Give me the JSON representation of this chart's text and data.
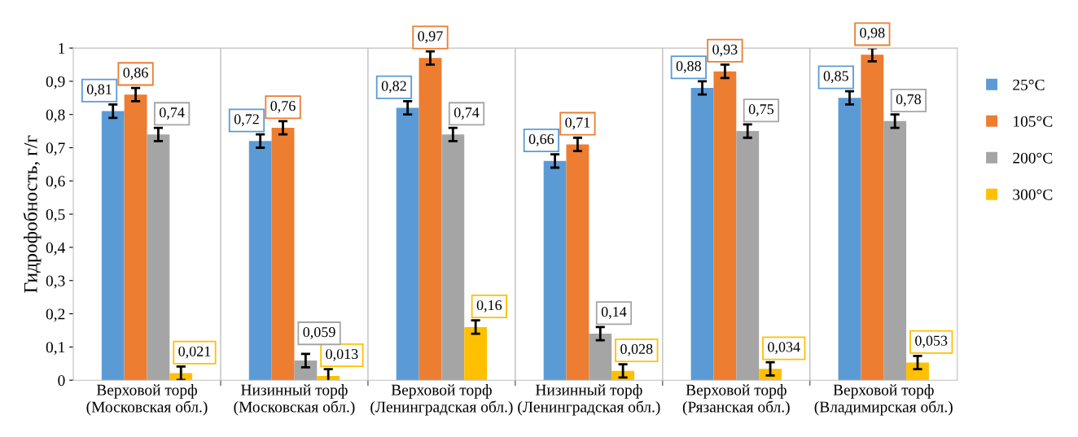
{
  "chart_data": {
    "type": "bar",
    "ylabel": "Гидрофобность, г/г",
    "categories": [
      "Верховой торф\n(Московская обл.)",
      "Низинный торф\n(Московская обл.)",
      "Верховой торф\n(Ленинградская обл.)",
      "Низинный торф\n(Ленинградская обл.)",
      "Верховой торф\n(Рязанская обл.)",
      "Верховой торф\n(Владимирская обл.)"
    ],
    "series": [
      {
        "name": "25°C",
        "color": "#5b9bd5",
        "values": [
          0.81,
          0.72,
          0.82,
          0.66,
          0.88,
          0.85
        ],
        "errors": [
          0.02,
          0.02,
          0.02,
          0.02,
          0.02,
          0.02
        ],
        "value_labels": [
          "0,81",
          "0,72",
          "0,82",
          "0,66",
          "0,88",
          "0,85"
        ]
      },
      {
        "name": "105°C",
        "color": "#ed7d31",
        "values": [
          0.86,
          0.76,
          0.97,
          0.71,
          0.93,
          0.98
        ],
        "errors": [
          0.02,
          0.02,
          0.02,
          0.02,
          0.02,
          0.02
        ],
        "value_labels": [
          "0,86",
          "0,76",
          "0,97",
          "0,71",
          "0,93",
          "0,98"
        ]
      },
      {
        "name": "200°C",
        "color": "#a5a5a5",
        "values": [
          0.74,
          0.059,
          0.74,
          0.14,
          0.75,
          0.78
        ],
        "errors": [
          0.02,
          0.02,
          0.02,
          0.02,
          0.02,
          0.02
        ],
        "value_labels": [
          "0,74",
          "0,059",
          "0,74",
          "0,14",
          "0,75",
          "0,78"
        ]
      },
      {
        "name": "300°C",
        "color": "#ffc000",
        "values": [
          0.021,
          0.013,
          0.16,
          0.028,
          0.034,
          0.053
        ],
        "errors": [
          0.02,
          0.02,
          0.02,
          0.02,
          0.02,
          0.02
        ],
        "value_labels": [
          "0,021",
          "0,013",
          "0,16",
          "0,028",
          "0,034",
          "0,053"
        ]
      }
    ],
    "ylim": [
      0,
      1
    ],
    "yticks": [
      0,
      {
        "value": 0.1,
        "label": "0,1"
      },
      {
        "value": 0.2,
        "label": "0,2"
      },
      {
        "value": 0.3,
        "label": "0,3"
      },
      {
        "value": 0.4,
        "label": "0,4"
      },
      {
        "value": 0.5,
        "label": "0,5"
      },
      {
        "value": 0.6,
        "label": "0,6"
      },
      {
        "value": 0.7,
        "label": "0,7"
      },
      {
        "value": 0.8,
        "label": "0,8"
      },
      {
        "value": 0.9,
        "label": "0,9"
      },
      1
    ],
    "grid": "x",
    "legend": "right"
  }
}
